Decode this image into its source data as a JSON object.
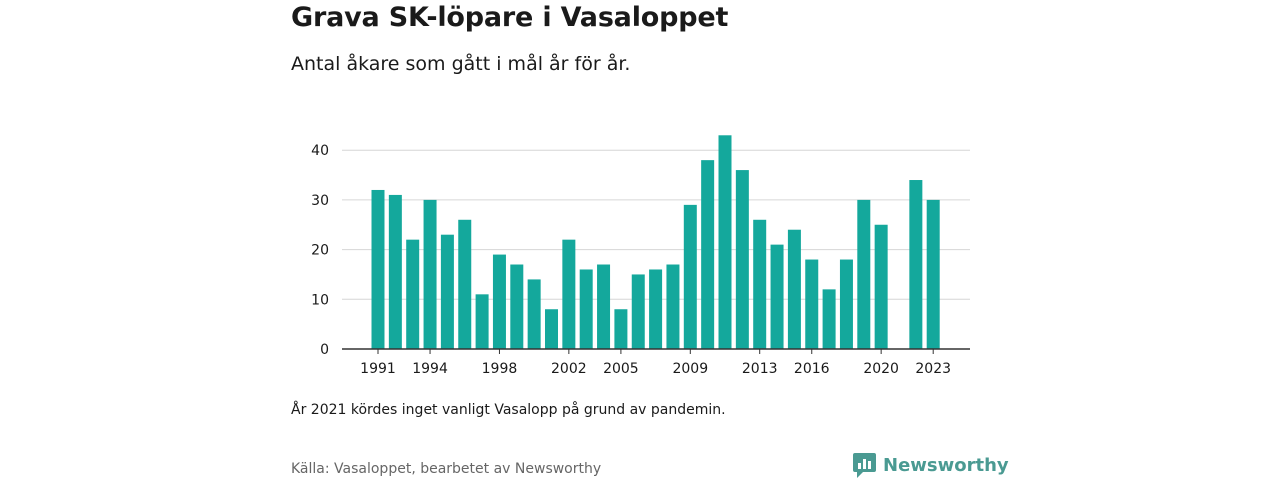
{
  "header": {
    "title": "Grava SK-löpare i Vasaloppet",
    "subtitle": "Antal åkare som gått i mål år för år."
  },
  "footer": {
    "note": "År 2021 kördes inget vanligt Vasalopp på grund av pandemin.",
    "source": "Källa: Vasaloppet, bearbetet av Newsworthy",
    "brand_name": "Newsworthy",
    "brand_color": "#4a9a92"
  },
  "chart_data": {
    "type": "bar",
    "x": [
      1991,
      1992,
      1993,
      1994,
      1995,
      1996,
      1997,
      1998,
      1999,
      2000,
      2001,
      2002,
      2003,
      2004,
      2005,
      2006,
      2007,
      2008,
      2009,
      2010,
      2011,
      2012,
      2013,
      2014,
      2015,
      2016,
      2017,
      2018,
      2019,
      2020,
      2021,
      2022,
      2023
    ],
    "values": [
      32,
      31,
      22,
      30,
      23,
      26,
      11,
      19,
      17,
      14,
      8,
      22,
      16,
      17,
      8,
      15,
      16,
      17,
      29,
      38,
      43,
      36,
      26,
      21,
      24,
      18,
      12,
      18,
      30,
      25,
      null,
      34,
      30
    ],
    "x_tick_labels": [
      "1991",
      "1994",
      "1998",
      "2002",
      "2005",
      "2009",
      "2013",
      "2016",
      "2020",
      "2023"
    ],
    "y_ticks": [
      0,
      10,
      20,
      30,
      40
    ],
    "ylim": [
      0,
      44
    ],
    "bar_color": "#14a89c",
    "grid": true
  }
}
